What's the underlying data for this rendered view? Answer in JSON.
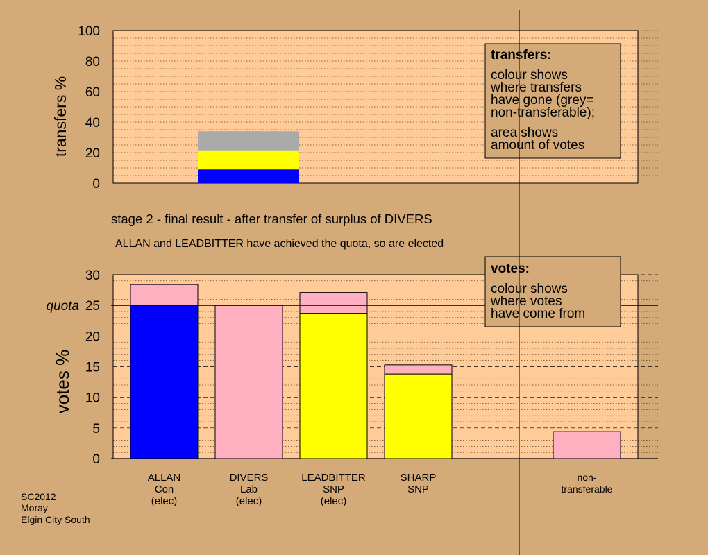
{
  "colors": {
    "background": "#d4aa78",
    "plot_area": "#ffcc99",
    "legend_box": "#d4aa78",
    "Con": "#0000ff",
    "SNP": "#ffff00",
    "Lab": "#ffb0c0",
    "non_transferable": "#aaaaaa"
  },
  "top_chart": {
    "ylabel": "transfers %",
    "ylim": [
      0,
      100
    ],
    "ticks": [
      "0",
      "20",
      "40",
      "60",
      "80",
      "100"
    ],
    "legend_title": "transfers:",
    "legend_lines_1": [
      "colour shows",
      "where transfers",
      "have gone (grey=",
      "non-transferable);"
    ],
    "legend_lines_2": [
      "area shows",
      "amount of votes"
    ]
  },
  "stage_title": "stage 2 - final result - after transfer of surplus of DIVERS",
  "elected_note": "ALLAN and LEADBITTER have achieved the quota, so are elected",
  "bottom_chart": {
    "ylabel": "votes %",
    "ylim": [
      0,
      30
    ],
    "ticks": [
      "0",
      "5",
      "10",
      "15",
      "20",
      "25",
      "30"
    ],
    "quota_label": "quota",
    "quota": 25,
    "legend_title": "votes:",
    "legend_lines": [
      "colour shows",
      "where votes",
      "have come from"
    ]
  },
  "footer": {
    "election": "SC2012",
    "council": "Moray",
    "ward": "Elgin City South"
  },
  "chart_data": [
    {
      "type": "bar",
      "title": "",
      "ylabel": "transfers %",
      "ylim": [
        0,
        100
      ],
      "grid": true,
      "stacked": true,
      "bars": [
        {
          "category": "DIVERS",
          "segments": [
            {
              "party": "Con",
              "value": 9
            },
            {
              "party": "SNP",
              "value": 12.5
            },
            {
              "party": "non-transferable",
              "value": 12.5
            }
          ]
        }
      ]
    },
    {
      "type": "bar",
      "title": "",
      "ylabel": "votes %",
      "ylim": [
        0,
        30
      ],
      "grid": true,
      "stacked": true,
      "quota": 25,
      "bars": [
        {
          "name": "ALLAN",
          "party": "Con",
          "status": "(elec)",
          "segments": [
            {
              "party": "Con",
              "value": 25
            },
            {
              "party": "Lab",
              "value": 3.4
            }
          ]
        },
        {
          "name": "DIVERS",
          "party": "Lab",
          "status": "(elec)",
          "segments": [
            {
              "party": "Lab",
              "value": 25
            }
          ]
        },
        {
          "name": "LEADBITTER",
          "party": "SNP",
          "status": "(elec)",
          "segments": [
            {
              "party": "SNP",
              "value": 23.7
            },
            {
              "party": "Lab",
              "value": 3.4
            }
          ]
        },
        {
          "name": "SHARP",
          "party": "SNP",
          "status": "",
          "segments": [
            {
              "party": "SNP",
              "value": 13.8
            },
            {
              "party": "Lab",
              "value": 1.5
            }
          ]
        },
        {
          "name": "non-",
          "party": "transferable",
          "status": "",
          "segments": [
            {
              "party": "Lab",
              "value": 4.4
            }
          ]
        }
      ]
    }
  ]
}
